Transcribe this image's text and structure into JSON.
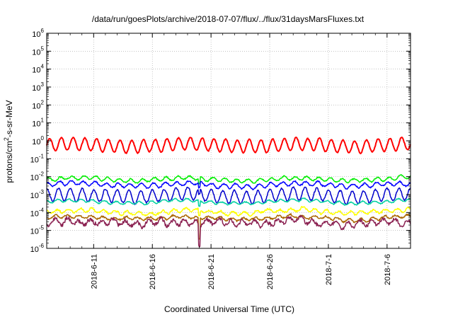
{
  "chart_data": {
    "type": "line",
    "title": "/data/run/goesPlots/archive/2018-07-07/flux/../flux/31daysMarsFluxes.txt",
    "xlabel": "Coordinated Universal Time (UTC)",
    "ylabel": {
      "base": "protons/cm",
      "sup": "2",
      "rest": "-s-sr-MeV"
    },
    "x_range_days": [
      0,
      31
    ],
    "x_ticks": [
      {
        "day": 4,
        "label": "2018-6-11"
      },
      {
        "day": 9,
        "label": "2018-6-16"
      },
      {
        "day": 14,
        "label": "2018-6-21"
      },
      {
        "day": 19,
        "label": "2018-6-26"
      },
      {
        "day": 24,
        "label": "2018-7-1"
      },
      {
        "day": 29,
        "label": "2018-7-6"
      }
    ],
    "y_scale": "log",
    "ylim_exp": [
      -6,
      6
    ],
    "y_tick_exps": [
      -6,
      -5,
      -4,
      -3,
      -2,
      -1,
      0,
      1,
      2,
      3,
      4,
      5,
      6
    ],
    "grid": true,
    "series": [
      {
        "color": "#ff0000",
        "log_base": -0.25,
        "amp": 0.35,
        "period": 1.0,
        "noise": 0.05,
        "width": 2
      },
      {
        "color": "#00ee00",
        "log_base": -2.15,
        "amp": 0.1,
        "period": 1.0,
        "noise": 0.06,
        "width": 1.5
      },
      {
        "color": "#0000ff",
        "log_base": -2.45,
        "amp": 0.12,
        "period": 1.0,
        "noise": 0.07,
        "width": 1.5
      },
      {
        "color": "#0000cc",
        "log_base": -3.05,
        "amp": 0.35,
        "period": 1.0,
        "noise": 0.08,
        "width": 1.5
      },
      {
        "color": "#00d0a0",
        "log_base": -3.4,
        "amp": 0.08,
        "period": 1.0,
        "noise": 0.05,
        "width": 1.5
      },
      {
        "color": "#ffff00",
        "log_base": -3.95,
        "amp": 0.1,
        "period": 1.0,
        "noise": 0.1,
        "width": 1.5
      },
      {
        "color": "#aa6600",
        "log_base": -4.3,
        "amp": 0.08,
        "period": 1.0,
        "noise": 0.08,
        "width": 1.5
      },
      {
        "color": "#8b2252",
        "log_base": -4.55,
        "amp": 0.15,
        "period": 1.0,
        "noise": 0.18,
        "width": 1.5
      }
    ]
  }
}
